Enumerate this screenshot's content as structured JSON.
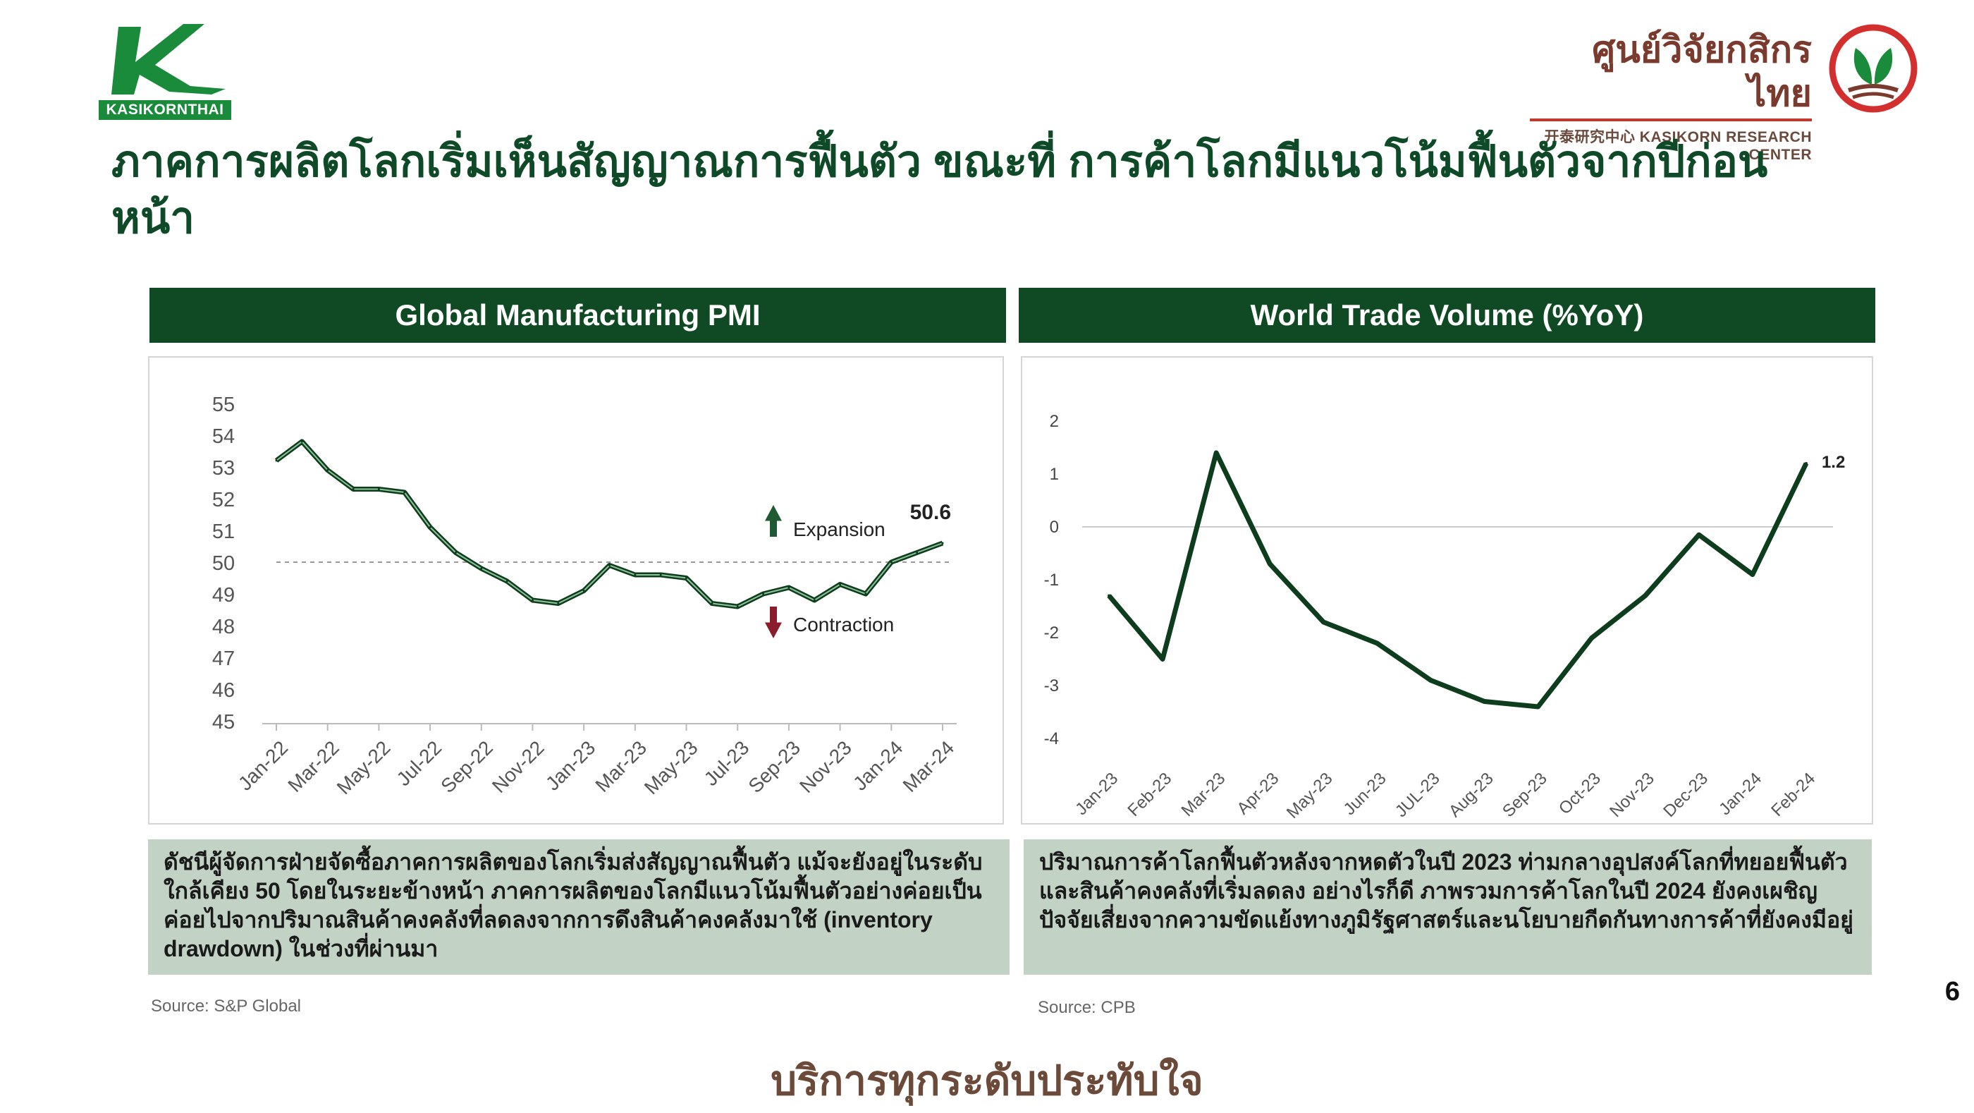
{
  "brand": {
    "left_logo_text": "KASIKORNTHAI",
    "right_logo_thai": "ศูนย์วิจัยกสิกรไทย",
    "right_logo_en": "开泰研究中心 KASIKORN RESEARCH CENTER"
  },
  "title": "ภาคการผลิตโลกเริ่มเห็นสัญญาณการฟื้นตัว ขณะที่ การค้าโลกมีแนวโน้มฟื้นตัวจากปีก่อนหน้า",
  "left_panel": {
    "header": "Global Manufacturing PMI",
    "note": "ดัชนีผู้จัดการฝ่ายจัดซื้อภาคการผลิตของโลกเริ่มส่งสัญญาณฟื้นตัว แม้จะยังอยู่ในระดับใกล้เคียง 50 โดยในระยะข้างหน้า ภาคการผลิตของโลกมีแนวโน้มฟื้นตัวอย่างค่อยเป็นค่อยไปจากปริมาณสินค้าคงคลังที่ลดลงจากการดึงสินค้าคงคลังมาใช้ (inventory drawdown) ในช่วงที่ผ่านมา",
    "source": "Source: S&P Global"
  },
  "right_panel": {
    "header": "World Trade Volume (%YoY)",
    "note": "ปริมาณการค้าโลกฟื้นตัวหลังจากหดตัวในปี 2023 ท่ามกลางอุปสงค์โลกที่ทยอยฟื้นตัวและสินค้าคงคลังที่เริ่มลดลง อย่างไรก็ดี ภาพรวมการค้าโลกในปี 2024 ยังคงเผชิญปัจจัยเสี่ยงจากความขัดแย้งทางภูมิรัฐศาสตร์และนโยบายกีดกันทางการค้าที่ยังคงมีอยู่",
    "source": "Source: CPB"
  },
  "page_number": "6",
  "footer": "บริการทุกระดับประทับใจ",
  "colors": {
    "dark_green": "#0f4a24",
    "note_bg": "#c2d3c6",
    "up_arrow": "#1f5a32",
    "down_arrow": "#8b1c2c"
  },
  "chart_data": [
    {
      "type": "line",
      "title": "Global Manufacturing PMI",
      "ylim": [
        45,
        55
      ],
      "yticks": [
        "55",
        "54",
        "53",
        "52",
        "51",
        "50",
        "49",
        "48",
        "47",
        "46",
        "45"
      ],
      "tick_labels": [
        "Jan-22",
        "Mar-22",
        "May-22",
        "Jul-22",
        "Sep-22",
        "Nov-22",
        "Jan-23",
        "Mar-23",
        "May-23",
        "Jul-23",
        "Sep-23",
        "Nov-23",
        "Jan-24",
        "Mar-24"
      ],
      "x": [
        "Jan-22",
        "Feb-22",
        "Mar-22",
        "Apr-22",
        "May-22",
        "Jun-22",
        "Jul-22",
        "Aug-22",
        "Sep-22",
        "Oct-22",
        "Nov-22",
        "Dec-22",
        "Jan-23",
        "Feb-23",
        "Mar-23",
        "Apr-23",
        "May-23",
        "Jun-23",
        "Jul-23",
        "Aug-23",
        "Sep-23",
        "Oct-23",
        "Nov-23",
        "Dec-23",
        "Jan-24",
        "Feb-24",
        "Mar-24"
      ],
      "values": [
        53.2,
        53.8,
        52.9,
        52.3,
        52.3,
        52.2,
        51.1,
        50.3,
        49.8,
        49.4,
        48.8,
        48.7,
        49.1,
        49.9,
        49.6,
        49.6,
        49.5,
        48.7,
        48.6,
        49.0,
        49.2,
        48.8,
        49.3,
        49.0,
        50.0,
        50.3,
        50.6
      ],
      "reference_line": 50,
      "end_label": "50.6",
      "annotations": {
        "up": "Expansion",
        "down": "Contraction"
      },
      "grid": false
    },
    {
      "type": "line",
      "title": "World Trade Volume (%YoY)",
      "ylim": [
        -4,
        2
      ],
      "yticks": [
        "2",
        "1",
        "0",
        "-1",
        "-2",
        "-3",
        "-4"
      ],
      "x": [
        "Jan-23",
        "Feb-23",
        "Mar-23",
        "Apr-23",
        "May-23",
        "Jun-23",
        "JUL-23",
        "Aug-23",
        "Sep-23",
        "Oct-23",
        "Nov-23",
        "Dec-23",
        "Jan-24",
        "Feb-24"
      ],
      "values": [
        -1.3,
        -2.5,
        1.4,
        -0.7,
        -1.8,
        -2.2,
        -2.9,
        -3.3,
        -3.4,
        -2.1,
        -1.3,
        -0.15,
        -0.9,
        1.2
      ],
      "end_label": "1.2",
      "grid": false
    }
  ]
}
